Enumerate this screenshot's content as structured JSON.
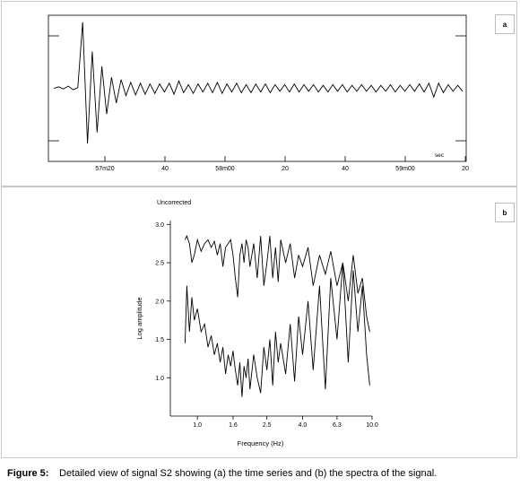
{
  "caption": {
    "label": "Figure 5:",
    "text": "Detailed view of signal S2 showing (a) the time series and (b) the spectra of the signal."
  },
  "chart_data": [
    {
      "type": "line",
      "panel_label": "a",
      "title": "",
      "xlabel": "",
      "ylabel": "",
      "x_unit_label": "sec",
      "x_ticks": [
        "57m20",
        "40",
        "58m00",
        "20",
        "40",
        "59m00",
        "20"
      ],
      "grid": false,
      "series": [
        {
          "values": [
            0.0,
            0.02,
            -0.01,
            0.03,
            -0.02,
            0.01,
            0.9,
            -0.75,
            0.5,
            -0.6,
            0.3,
            -0.35,
            0.15,
            -0.2,
            0.12,
            -0.1,
            0.08,
            -0.09,
            0.07,
            -0.08,
            0.06,
            -0.07,
            0.06,
            -0.05,
            0.07,
            -0.08,
            0.1,
            -0.06,
            0.05,
            -0.07,
            0.06,
            -0.05,
            0.07,
            -0.06,
            0.08,
            -0.07,
            0.06,
            -0.05,
            0.07,
            -0.06,
            0.05,
            -0.06,
            0.06,
            -0.05,
            0.06,
            -0.06,
            0.05,
            -0.04,
            0.05,
            -0.05,
            0.06,
            -0.05,
            0.05,
            -0.04,
            0.05,
            -0.05,
            0.04,
            -0.05,
            0.05,
            -0.04,
            0.05,
            -0.05,
            0.04,
            -0.04,
            0.05,
            -0.04,
            0.04,
            -0.05,
            0.04,
            -0.04,
            0.05,
            -0.05,
            0.04,
            -0.04,
            0.05,
            -0.04,
            0.06,
            -0.05,
            0.07,
            -0.12,
            0.07,
            -0.06,
            0.05,
            -0.04,
            0.04,
            -0.04
          ]
        }
      ]
    },
    {
      "type": "line",
      "panel_label": "b",
      "title": "Uncorrected",
      "xlabel": "Frequency (Hz)",
      "ylabel": "Log amplitude",
      "x_ticks": [
        "1.0",
        "1.6",
        "2.5",
        "4.0",
        "6.3",
        "10.0"
      ],
      "x_tick_values": [
        1.0,
        1.6,
        2.5,
        4.0,
        6.3,
        10.0
      ],
      "y_ticks": [
        "1.0",
        "1.5",
        "2.0",
        "2.5",
        "3.0"
      ],
      "y_tick_values": [
        1.0,
        1.5,
        2.0,
        2.5,
        3.0
      ],
      "xlim": [
        0.7,
        10.0
      ],
      "ylim": [
        0.5,
        3.05
      ],
      "x_scale": "log",
      "grid": false,
      "series": [
        {
          "x": [
            0.85,
            0.87,
            0.9,
            0.93,
            0.96,
            1.0,
            1.05,
            1.1,
            1.15,
            1.2,
            1.25,
            1.3,
            1.35,
            1.4,
            1.45,
            1.5,
            1.55,
            1.6,
            1.65,
            1.7,
            1.75,
            1.8,
            1.85,
            1.9,
            1.95,
            2.0,
            2.1,
            2.2,
            2.3,
            2.4,
            2.5,
            2.6,
            2.7,
            2.8,
            2.9,
            3.0,
            3.2,
            3.4,
            3.6,
            3.8,
            4.0,
            4.3,
            4.6,
            5.0,
            5.4,
            5.8,
            6.3,
            6.8,
            7.3,
            7.8,
            8.3,
            8.8,
            9.3,
            9.7
          ],
          "y": [
            2.8,
            2.85,
            2.75,
            2.5,
            2.6,
            2.8,
            2.65,
            2.75,
            2.8,
            2.7,
            2.78,
            2.6,
            2.75,
            2.45,
            2.7,
            2.75,
            2.8,
            2.6,
            2.3,
            2.05,
            2.6,
            2.75,
            2.5,
            2.8,
            2.7,
            2.45,
            2.75,
            2.3,
            2.85,
            2.2,
            2.5,
            2.85,
            2.3,
            2.7,
            2.25,
            2.8,
            2.5,
            2.75,
            2.3,
            2.6,
            2.45,
            2.7,
            2.2,
            2.6,
            2.35,
            2.65,
            2.2,
            2.5,
            2.0,
            2.6,
            2.1,
            2.3,
            1.8,
            1.6
          ]
        },
        {
          "x": [
            0.85,
            0.87,
            0.9,
            0.93,
            0.96,
            1.0,
            1.05,
            1.1,
            1.15,
            1.2,
            1.25,
            1.3,
            1.35,
            1.4,
            1.45,
            1.5,
            1.55,
            1.6,
            1.65,
            1.7,
            1.75,
            1.8,
            1.85,
            1.9,
            1.95,
            2.0,
            2.1,
            2.2,
            2.3,
            2.4,
            2.5,
            2.6,
            2.7,
            2.8,
            2.9,
            3.0,
            3.2,
            3.4,
            3.6,
            3.8,
            4.0,
            4.3,
            4.6,
            5.0,
            5.4,
            5.8,
            6.3,
            6.8,
            7.3,
            7.8,
            8.3,
            8.8,
            9.3,
            9.7
          ],
          "y": [
            1.45,
            2.2,
            1.6,
            2.05,
            1.75,
            1.9,
            1.6,
            1.7,
            1.4,
            1.55,
            1.3,
            1.45,
            1.2,
            1.4,
            1.05,
            1.3,
            1.15,
            1.35,
            1.1,
            0.9,
            1.2,
            0.75,
            1.15,
            1.0,
            1.25,
            0.85,
            1.3,
            1.0,
            0.8,
            1.4,
            1.1,
            1.5,
            0.9,
            1.6,
            1.2,
            1.45,
            1.05,
            1.7,
            0.95,
            1.8,
            1.3,
            2.0,
            1.1,
            2.2,
            0.85,
            2.3,
            1.5,
            2.5,
            1.2,
            2.4,
            1.6,
            2.2,
            1.3,
            0.9
          ]
        }
      ]
    }
  ]
}
